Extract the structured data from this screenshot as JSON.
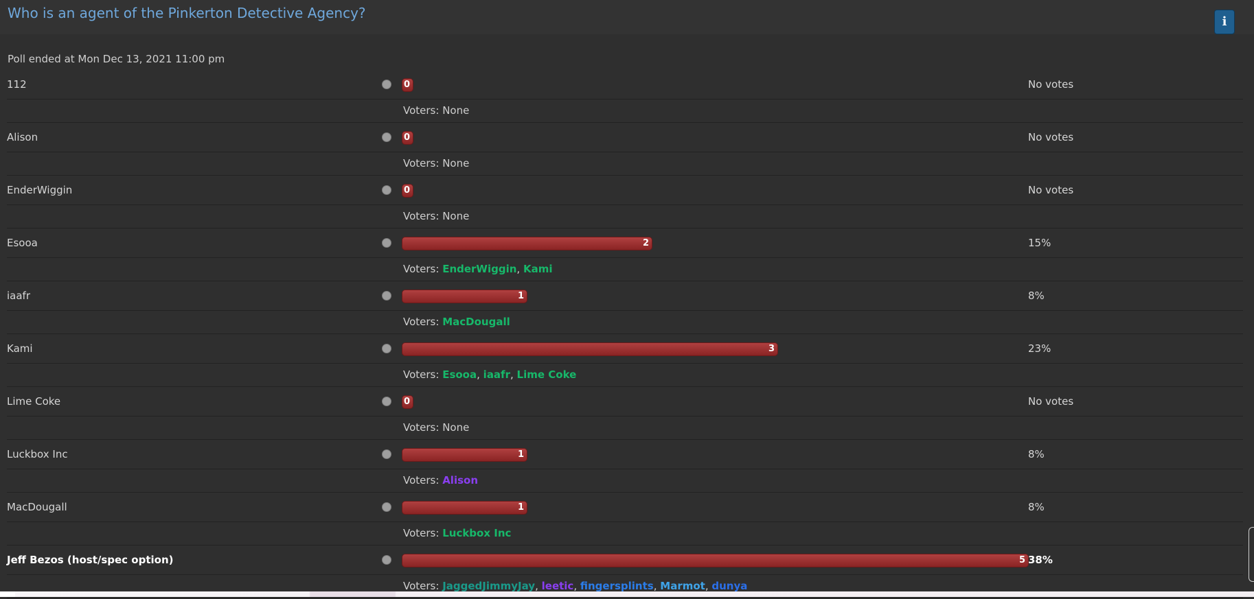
{
  "poll": {
    "title": "Who is an agent of the Pinkerton Detective Agency?",
    "info_icon": "i",
    "ended": "Poll ended at Mon Dec 13, 2021 11:00 pm",
    "voters_label": "Voters:",
    "options": [
      {
        "name": "112",
        "votes": "0",
        "fraction": 0,
        "result": "No votes",
        "voters_none": "None"
      },
      {
        "name": "Alison",
        "votes": "0",
        "fraction": 0,
        "result": "No votes",
        "voters_none": "None"
      },
      {
        "name": "EnderWiggin",
        "votes": "0",
        "fraction": 0,
        "result": "No votes",
        "voters_none": "None"
      },
      {
        "name": "Esooa",
        "votes": "2",
        "fraction": 0.4,
        "result": "15%",
        "voters": [
          {
            "name": "EnderWiggin",
            "color": "#17b86a"
          },
          {
            "name": "Kami",
            "color": "#17b86a"
          }
        ]
      },
      {
        "name": "iaafr",
        "votes": "1",
        "fraction": 0.2,
        "result": "8%",
        "voters": [
          {
            "name": "MacDougall",
            "color": "#17b86a"
          }
        ]
      },
      {
        "name": "Kami",
        "votes": "3",
        "fraction": 0.6,
        "result": "23%",
        "voters": [
          {
            "name": "Esooa",
            "color": "#17b86a"
          },
          {
            "name": "iaafr",
            "color": "#17b86a"
          },
          {
            "name": "Lime Coke",
            "color": "#17b86a"
          }
        ]
      },
      {
        "name": "Lime Coke",
        "votes": "0",
        "fraction": 0,
        "result": "No votes",
        "voters_none": "None"
      },
      {
        "name": "Luckbox Inc",
        "votes": "1",
        "fraction": 0.2,
        "result": "8%",
        "voters": [
          {
            "name": "Alison",
            "color": "#8a3ff0"
          }
        ]
      },
      {
        "name": "MacDougall",
        "votes": "1",
        "fraction": 0.2,
        "result": "8%",
        "voters": [
          {
            "name": "Luckbox Inc",
            "color": "#17b86a"
          }
        ]
      },
      {
        "name": "Jeff Bezos (host/spec option)",
        "votes": "5",
        "fraction": 1.0,
        "result": "38%",
        "bold": true,
        "voters": [
          {
            "name": "JaggedJimmyJay",
            "color": "#1a9a8a"
          },
          {
            "name": "leetic",
            "color": "#8a3ff0"
          },
          {
            "name": "fingersplints",
            "color": "#2b7de9"
          },
          {
            "name": "Marmot",
            "color": "#3fa3e8"
          },
          {
            "name": "dunya",
            "color": "#2b6fe9"
          }
        ]
      }
    ]
  }
}
